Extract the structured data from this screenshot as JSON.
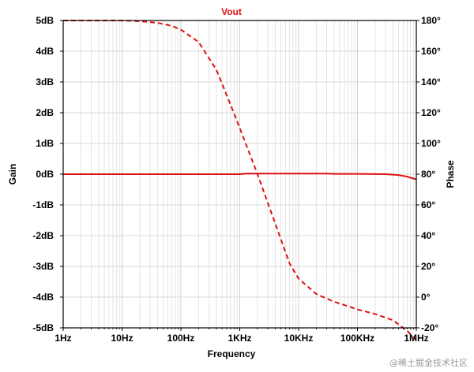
{
  "chart_data": {
    "type": "line",
    "title": "Vout",
    "xlabel": "Frequency",
    "ylabel_left": "Gain",
    "ylabel_right": "Phase",
    "x_scale": "log",
    "xlim": [
      1,
      1000000
    ],
    "ylim_left": [
      -5,
      5
    ],
    "ylim_right": [
      -20,
      180
    ],
    "grid": true,
    "x_ticks": [
      {
        "value": 1,
        "label": "1Hz"
      },
      {
        "value": 10,
        "label": "10Hz"
      },
      {
        "value": 100,
        "label": "100Hz"
      },
      {
        "value": 1000,
        "label": "1KHz"
      },
      {
        "value": 10000,
        "label": "10KHz"
      },
      {
        "value": 100000,
        "label": "100KHz"
      },
      {
        "value": 1000000,
        "label": "1MHz"
      }
    ],
    "y_ticks_left": [
      {
        "value": 5,
        "label": "5dB"
      },
      {
        "value": 4,
        "label": "4dB"
      },
      {
        "value": 3,
        "label": "3dB"
      },
      {
        "value": 2,
        "label": "2dB"
      },
      {
        "value": 1,
        "label": "1dB"
      },
      {
        "value": 0,
        "label": "0dB"
      },
      {
        "value": -1,
        "label": "-1dB"
      },
      {
        "value": -2,
        "label": "-2dB"
      },
      {
        "value": -3,
        "label": "-3dB"
      },
      {
        "value": -4,
        "label": "-4dB"
      },
      {
        "value": -5,
        "label": "-5dB"
      }
    ],
    "y_ticks_right": [
      {
        "value": 180,
        "label": "180°"
      },
      {
        "value": 160,
        "label": "160°"
      },
      {
        "value": 140,
        "label": "140°"
      },
      {
        "value": 120,
        "label": "120°"
      },
      {
        "value": 100,
        "label": "100°"
      },
      {
        "value": 80,
        "label": "80°"
      },
      {
        "value": 60,
        "label": "60°"
      },
      {
        "value": 40,
        "label": "40°"
      },
      {
        "value": 20,
        "label": "20°"
      },
      {
        "value": 0,
        "label": "0°"
      },
      {
        "value": -20,
        "label": "-20°"
      }
    ],
    "series": [
      {
        "axis": "left",
        "style": "solid",
        "color": "#dd1111",
        "points": [
          [
            1,
            0.0
          ],
          [
            10,
            0.0
          ],
          [
            100,
            0.0
          ],
          [
            1000,
            0.0
          ],
          [
            1300,
            0.02
          ],
          [
            10000,
            0.02
          ],
          [
            30000,
            0.02
          ],
          [
            40000,
            0.01
          ],
          [
            100000,
            0.01
          ],
          [
            300000,
            0.0
          ],
          [
            500000,
            -0.03
          ],
          [
            700000,
            -0.08
          ],
          [
            1000000,
            -0.17
          ]
        ]
      },
      {
        "axis": "right",
        "style": "dashed",
        "color": "#dd1111",
        "points": [
          [
            1,
            180
          ],
          [
            10,
            180
          ],
          [
            20,
            179.5
          ],
          [
            40,
            178.5
          ],
          [
            70,
            176.5
          ],
          [
            100,
            174
          ],
          [
            200,
            166
          ],
          [
            400,
            148
          ],
          [
            700,
            125
          ],
          [
            1000,
            110
          ],
          [
            2000,
            80
          ],
          [
            4000,
            48
          ],
          [
            7000,
            22
          ],
          [
            10000,
            12
          ],
          [
            20000,
            2
          ],
          [
            40000,
            -3
          ],
          [
            70000,
            -6
          ],
          [
            100000,
            -8
          ],
          [
            200000,
            -11
          ],
          [
            400000,
            -15
          ],
          [
            700000,
            -22
          ],
          [
            1000000,
            -28
          ]
        ]
      }
    ]
  },
  "watermark": "@稀土掘金技术社区"
}
